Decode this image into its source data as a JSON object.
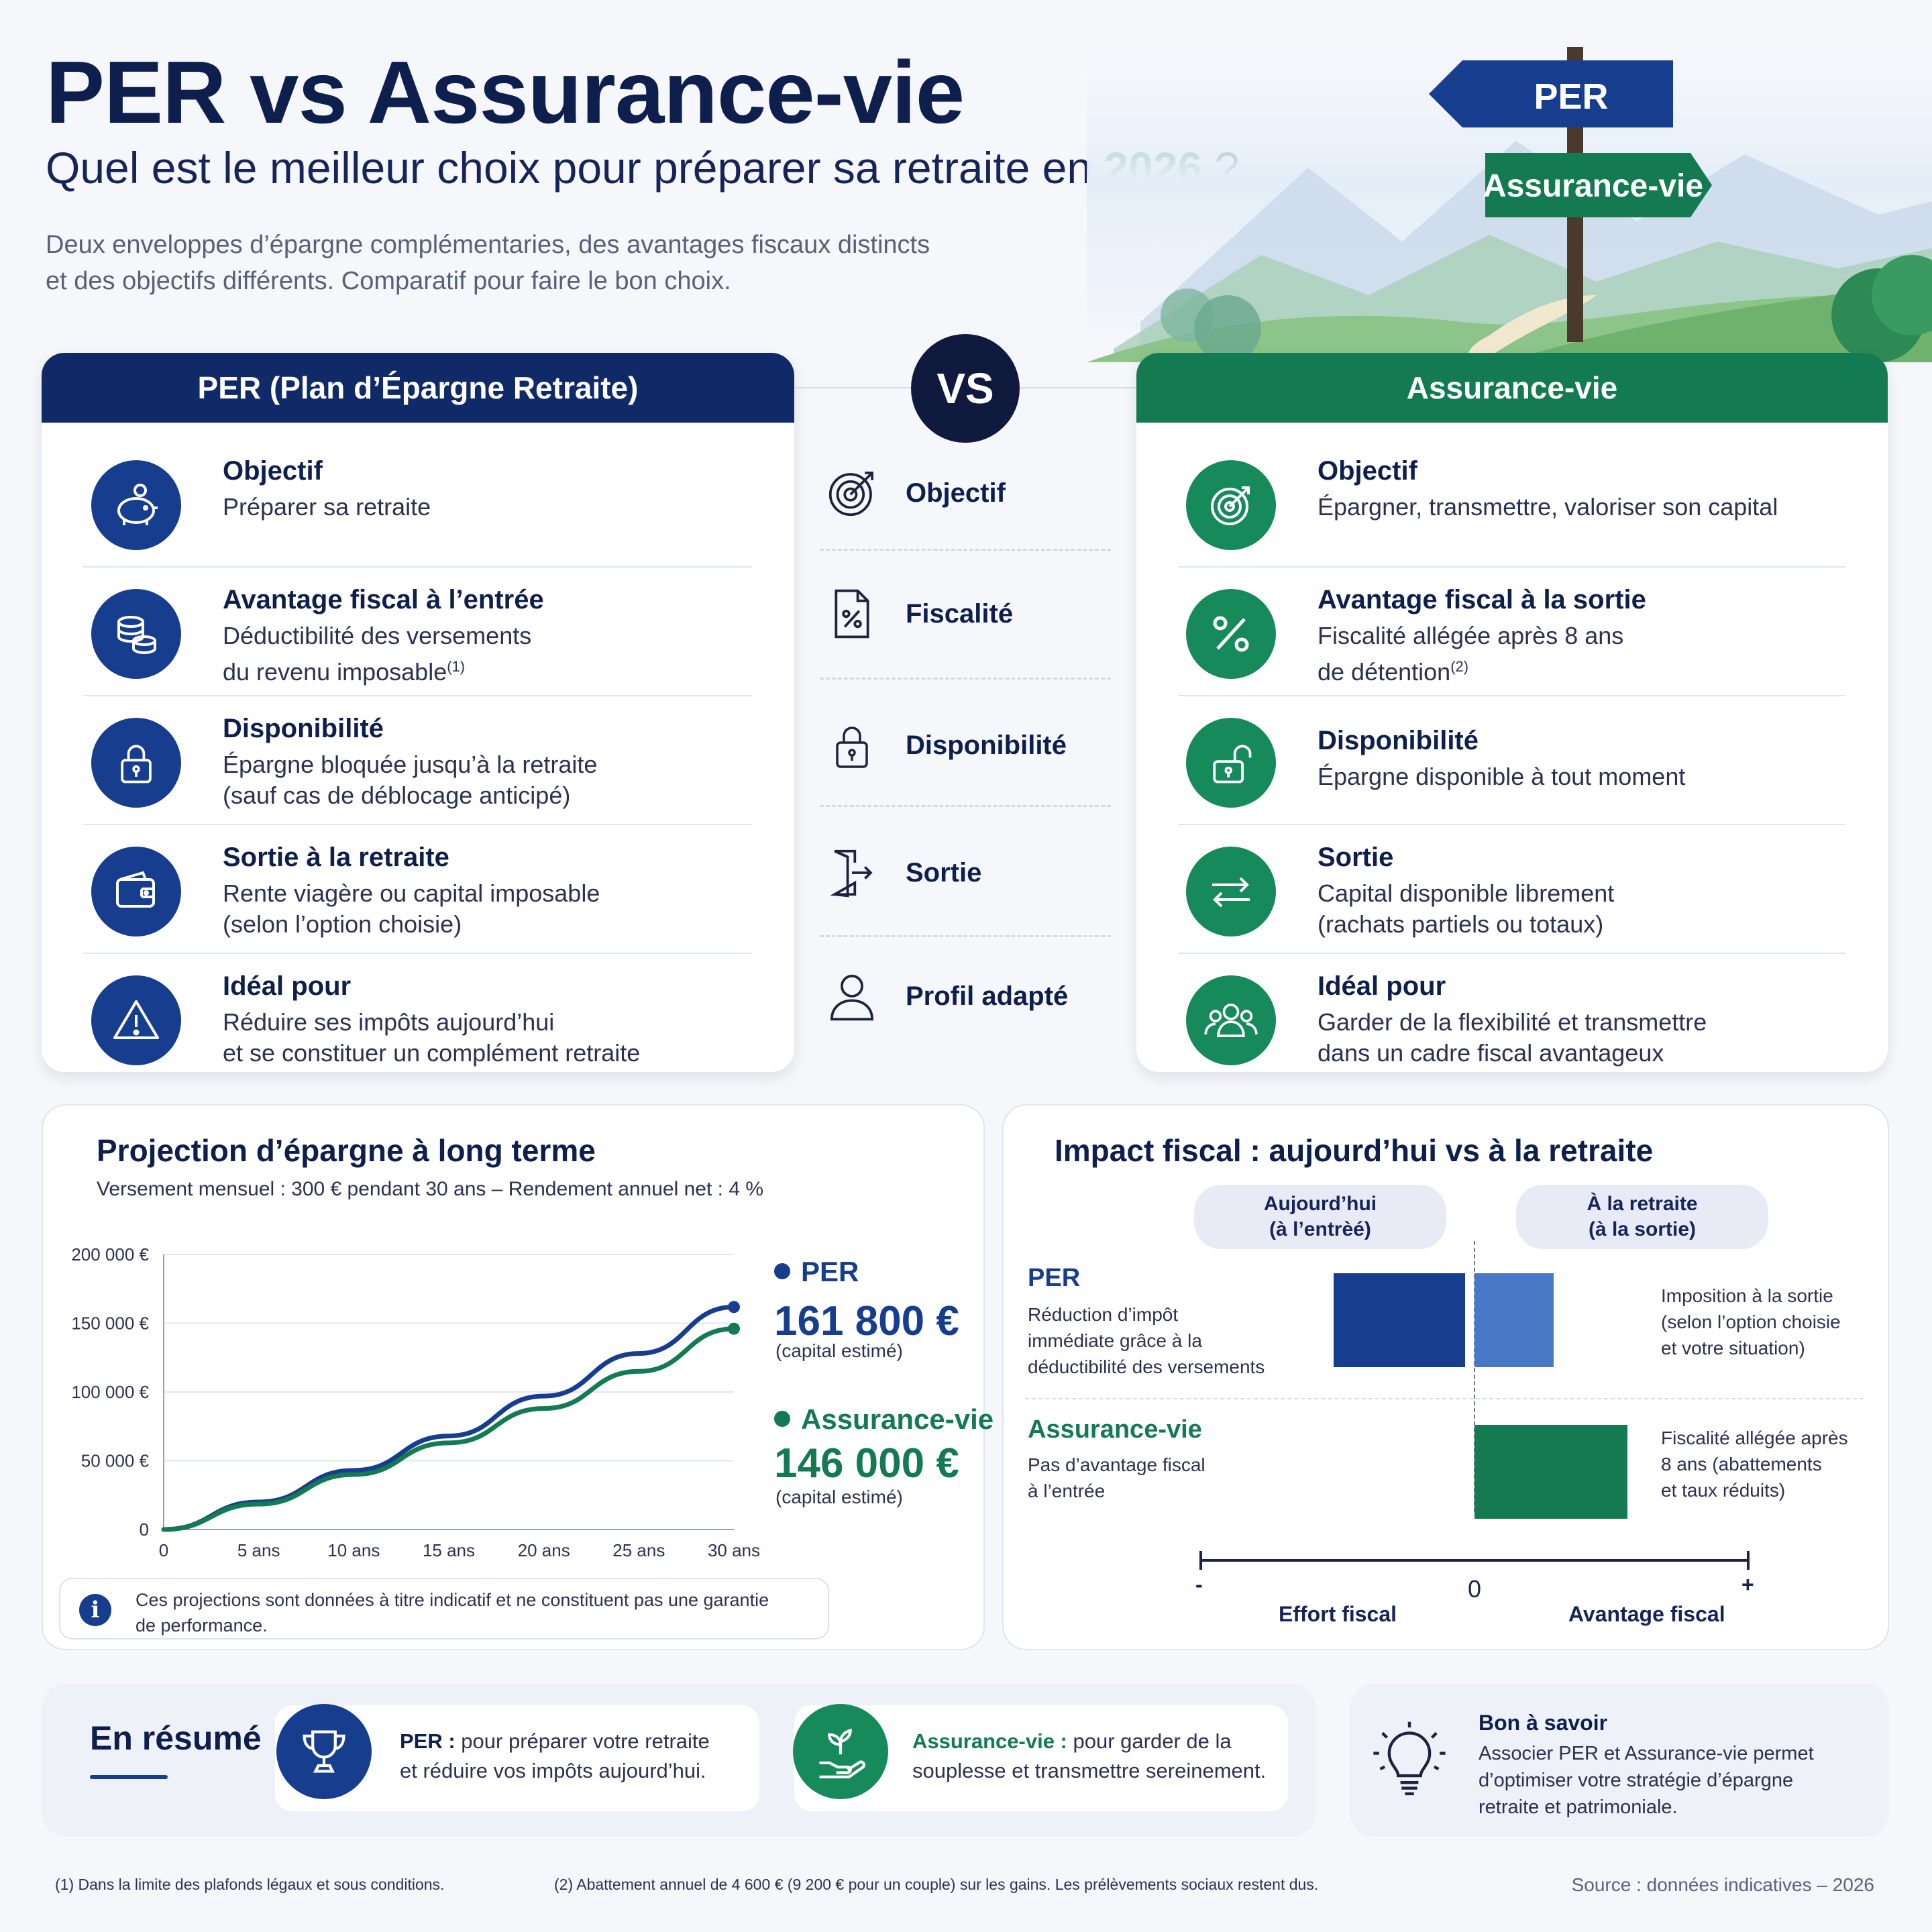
{
  "header": {
    "title": "PER vs Assurance-vie",
    "subtitle_before": "Quel est le meilleur choix pour préparer sa retraite en",
    "subtitle_year": "2026",
    "subtitle_after": "?",
    "intro_line1": "Deux enveloppes d’épargne complémentaries, des avantages fiscaux distincts",
    "intro_line2": "et des objectifs différents. Comparatif pour faire le bon choix.",
    "sign_per": "PER",
    "sign_av": "Assurance-vie"
  },
  "colors": {
    "navy": "#0f2a66",
    "blue": "#173d8f",
    "green": "#137a52",
    "light_blue": "#4a78c8"
  },
  "per_panel": {
    "title": "PER (Plan d’Épargne Retraite)",
    "rows": [
      {
        "icon": "piggy-bank-icon",
        "title": "Objectif",
        "line1": "Préparer sa retraite",
        "line2": ""
      },
      {
        "icon": "coins-icon",
        "title": "Avantage fiscal à l’entrée",
        "line1": "Déductibilité des versements",
        "line2": "du revenu imposable",
        "sup": "(1)"
      },
      {
        "icon": "lock-icon",
        "title": "Disponibilité",
        "line1": "Épargne bloquée jusqu’à la retraite",
        "line2": "(sauf cas de déblocage anticipé)"
      },
      {
        "icon": "wallet-icon",
        "title": "Sortie à la retraite",
        "line1": "Rente viagère ou capital imposable",
        "line2": "(selon l’option choisie)"
      },
      {
        "icon": "warning-icon",
        "title": "Idéal pour",
        "line1": "Réduire ses impôts aujourd’hui",
        "line2": "et se constituer un complément retraite"
      }
    ]
  },
  "vs": {
    "label": "VS",
    "criteria": [
      {
        "icon": "target-icon",
        "label": "Objectif"
      },
      {
        "icon": "tax-document-icon",
        "label": "Fiscalité"
      },
      {
        "icon": "padlock-icon",
        "label": "Disponibilité"
      },
      {
        "icon": "exit-door-icon",
        "label": "Sortie"
      },
      {
        "icon": "user-icon",
        "label": "Profil adapté"
      }
    ]
  },
  "av_panel": {
    "title": "Assurance-vie",
    "rows": [
      {
        "icon": "target-icon",
        "title": "Objectif",
        "line1": "Épargner, transmettre, valoriser son capital",
        "line2": ""
      },
      {
        "icon": "percent-icon",
        "title": "Avantage fiscal à la sortie",
        "line1": "Fiscalité allégée après 8 ans",
        "line2": "de détention",
        "sup": "(2)"
      },
      {
        "icon": "unlock-icon",
        "title": "Disponibilité",
        "line1": "Épargne disponible à tout moment",
        "line2": ""
      },
      {
        "icon": "exchange-icon",
        "title": "Sortie",
        "line1": "Capital disponible librement",
        "line2": "(rachats partiels ou totaux)"
      },
      {
        "icon": "group-icon",
        "title": "Idéal pour",
        "line1": "Garder de la flexibilité et transmettre",
        "line2": "dans un cadre fiscal avantageux"
      }
    ]
  },
  "projection": {
    "title": "Projection d’épargne à long terme",
    "subtitle": "Versement mensuel : 300 € pendant 30 ans – Rendement annuel net : 4 %",
    "disclaimer_line1": "Ces projections sont données à titre indicatif et ne constituent pas une garantie",
    "disclaimer_line2": "de performance.",
    "legend": [
      {
        "name": "PER",
        "value": "161 800 €",
        "note": "(capital estimé)"
      },
      {
        "name": "Assurance-vie",
        "value": "146 000 €",
        "note": "(capital estimé)"
      }
    ]
  },
  "chart_data": [
    {
      "type": "line",
      "title": "Projection d’épargne à long terme",
      "x": [
        0,
        5,
        10,
        15,
        20,
        25,
        30
      ],
      "x_tick_labels": [
        "0",
        "5 ans",
        "10 ans",
        "15 ans",
        "20 ans",
        "25 ans",
        "30 ans"
      ],
      "y_tick_labels": [
        "0",
        "50 000 €",
        "100 000 €",
        "150 000 €",
        "200 000 €"
      ],
      "y_ticks": [
        0,
        50000,
        100000,
        150000,
        200000
      ],
      "ylim": [
        0,
        200000
      ],
      "xlim": [
        0,
        30
      ],
      "grid": true,
      "legend_position": "right",
      "series": [
        {
          "name": "PER",
          "color": "#173d8f",
          "values": [
            0,
            20000,
            43000,
            68000,
            97000,
            128000,
            161800
          ]
        },
        {
          "name": "Assurance-vie",
          "color": "#137a52",
          "values": [
            0,
            18500,
            40000,
            63000,
            88000,
            115000,
            146000
          ]
        }
      ]
    },
    {
      "type": "bar",
      "title": "Impact fiscal : aujourd’hui vs à la retraite",
      "orientation": "horizontal",
      "xlabel_left": "Effort fiscal",
      "xlabel_right": "Avantage fiscal",
      "categories": [
        "PER",
        "Assurance-vie"
      ],
      "series": [
        {
          "name": "Aujourd’hui (à l’entrèé)",
          "values": [
            -0.48,
            0
          ],
          "colors": [
            "#173d8f",
            "#173d8f"
          ]
        },
        {
          "name": "À la retraite (à la sortie)",
          "values": [
            0.29,
            0.56
          ],
          "colors": [
            "#4a78c8",
            "#137a52"
          ]
        }
      ],
      "xlim": [
        -1,
        1
      ]
    }
  ],
  "impact": {
    "title": "Impact fiscal : aujourd’hui vs à la retraite",
    "pill_left_line1": "Aujourd’hui",
    "pill_left_line2": "(à l’entrèé)",
    "pill_right_line1": "À la retraite",
    "pill_right_line2": "(à la sortie)",
    "per_label": "PER",
    "per_desc_1": "Réduction d’impôt",
    "per_desc_2": "immédiate grâce à la",
    "per_desc_3": "déductibilité des versements",
    "per_note_1": "Imposition à la sortie",
    "per_note_2": "(selon l’option choisie",
    "per_note_3": "et votre situation)",
    "av_label": "Assurance-vie",
    "av_desc_1": "Pas d’avantage fiscal",
    "av_desc_2": "à l’entrée",
    "av_note_1": "Fiscalité allégée après",
    "av_note_2": "8 ans (abattements",
    "av_note_3": "et taux réduits)",
    "axis_minus": "-",
    "axis_zero": "0",
    "axis_plus": "+",
    "axis_left": "Effort fiscal",
    "axis_right": "Avantage fiscal"
  },
  "summary": {
    "title": "En résumé",
    "per_bold": "PER :",
    "per_line1": " pour préparer votre retraite",
    "per_line2": "et réduire vos impôts aujourd’hui.",
    "av_bold": "Assurance-vie :",
    "av_line1": " pour garder de la",
    "av_line2": "souplesse et transmettre sereinement.",
    "tip_title": "Bon à savoir",
    "tip_line1": "Associer PER et Assurance-vie permet",
    "tip_line2": "d’optimiser votre stratégie d’épargne",
    "tip_line3": "retraite et patrimoniale."
  },
  "footer": {
    "note1": "(1)  Dans la limite des plafonds légaux et sous conditions.",
    "note2": "(2)  Abattement annuel de 4 600 € (9 200 € pour un couple) sur les gains.  Les prélèvements sociaux restent dus.",
    "source": "Source : données indicatives – 2026"
  }
}
